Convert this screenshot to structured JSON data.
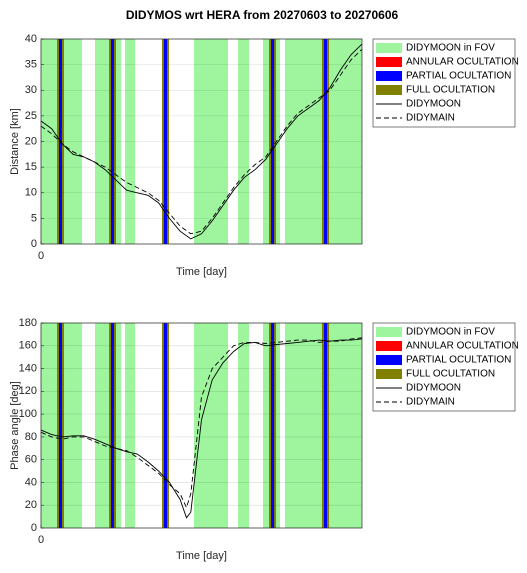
{
  "chart_data": [
    {
      "type": "line",
      "title": "DIDYMOS wrt HERA from 20270603 to 20270606",
      "xlabel": "Time [day]",
      "ylabel": "Distance [km]",
      "xlim": [
        0,
        3
      ],
      "xticks": [
        0
      ],
      "ylim": [
        0,
        40
      ],
      "yticks": [
        0,
        5,
        10,
        15,
        20,
        25,
        30,
        35,
        40
      ],
      "grid": true,
      "legend": "outside-right",
      "x": [
        0,
        0.1,
        0.2,
        0.3,
        0.4,
        0.5,
        0.6,
        0.7,
        0.8,
        0.9,
        1.0,
        1.1,
        1.2,
        1.3,
        1.4,
        1.5,
        1.6,
        1.7,
        1.8,
        1.9,
        2.0,
        2.1,
        2.2,
        2.3,
        2.4,
        2.5,
        2.6,
        2.7,
        2.8,
        2.9,
        3.0
      ],
      "bands": [
        {
          "name": "DIDYMOON in FOV",
          "color": "#9ef59e",
          "intervals": [
            [
              0,
              0.383
            ],
            [
              0.505,
              0.748
            ],
            [
              0.785,
              0.879
            ],
            [
              1.43,
              1.748
            ],
            [
              1.841,
              1.944
            ],
            [
              2.075,
              2.234
            ],
            [
              2.28,
              3
            ]
          ]
        },
        {
          "name": "ANNULAR OCULTATION",
          "color": "#ff0000",
          "intervals": []
        },
        {
          "name": "FULL OCULTATION",
          "color": "#808000",
          "intervals": [
            [
              0.15,
              0.215
            ],
            [
              0.636,
              0.701
            ],
            [
              1.131,
              1.196
            ],
            [
              2.131,
              2.196
            ],
            [
              2.626,
              2.692
            ]
          ]
        },
        {
          "name": "PARTIAL OCULTATION",
          "color": "#0000ff",
          "intervals": [
            [
              0.168,
              0.196
            ],
            [
              0.654,
              0.682
            ],
            [
              1.149,
              1.178
            ],
            [
              2.15,
              2.178
            ],
            [
              2.645,
              2.673
            ]
          ]
        }
      ],
      "series": [
        {
          "name": "DIDYMOON",
          "color": "#000000",
          "line_style": "solid",
          "values": [
            24,
            22.5,
            19.5,
            17.5,
            17,
            16,
            14.5,
            12.5,
            10.5,
            10,
            9.5,
            8,
            5,
            2.5,
            1,
            2,
            4.5,
            7.5,
            10.5,
            13,
            14.5,
            16.5,
            19.5,
            22.5,
            25,
            26.5,
            28,
            30.5,
            34,
            37,
            39
          ]
        },
        {
          "name": "DIDYMAIN",
          "color": "#000000",
          "line_style": "dashed",
          "values": [
            23,
            21.5,
            19.5,
            18,
            17,
            16,
            15,
            13.5,
            12,
            11,
            10,
            8.5,
            6,
            3.5,
            2,
            2.5,
            5,
            8,
            11,
            13.5,
            15.5,
            17,
            20,
            23,
            25.5,
            27,
            28.5,
            30,
            33,
            36,
            38
          ]
        }
      ]
    },
    {
      "type": "line",
      "xlabel": "Time [day]",
      "ylabel": "Phase angle [deg]",
      "xlim": [
        0,
        3
      ],
      "xticks": [
        0
      ],
      "ylim": [
        0,
        180
      ],
      "yticks": [
        0,
        20,
        40,
        60,
        80,
        100,
        120,
        140,
        160,
        180
      ],
      "grid": true,
      "legend": "outside-right",
      "x": [
        0,
        0.1,
        0.2,
        0.3,
        0.4,
        0.5,
        0.6,
        0.7,
        0.8,
        0.9,
        1.0,
        1.1,
        1.2,
        1.3,
        1.36,
        1.4,
        1.5,
        1.6,
        1.7,
        1.8,
        1.9,
        2.0,
        2.1,
        2.2,
        2.3,
        2.4,
        2.5,
        2.6,
        2.7,
        2.8,
        2.9,
        3.0
      ],
      "bands": [
        {
          "name": "DIDYMOON in FOV",
          "color": "#9ef59e",
          "intervals": [
            [
              0,
              0.383
            ],
            [
              0.505,
              0.748
            ],
            [
              0.785,
              0.879
            ],
            [
              1.43,
              1.748
            ],
            [
              1.841,
              1.944
            ],
            [
              2.075,
              2.234
            ],
            [
              2.28,
              3
            ]
          ]
        },
        {
          "name": "ANNULAR OCULTATION",
          "color": "#ff0000",
          "intervals": []
        },
        {
          "name": "FULL OCULTATION",
          "color": "#808000",
          "intervals": [
            [
              0.15,
              0.215
            ],
            [
              0.636,
              0.701
            ],
            [
              1.131,
              1.196
            ],
            [
              2.131,
              2.196
            ],
            [
              2.626,
              2.692
            ]
          ]
        },
        {
          "name": "PARTIAL OCULTATION",
          "color": "#0000ff",
          "intervals": [
            [
              0.168,
              0.196
            ],
            [
              0.654,
              0.682
            ],
            [
              1.149,
              1.178
            ],
            [
              2.15,
              2.178
            ],
            [
              2.645,
              2.673
            ]
          ]
        }
      ],
      "series": [
        {
          "name": "DIDYMOON",
          "color": "#000000",
          "line_style": "solid",
          "values": [
            86,
            82,
            80,
            81,
            81,
            78,
            74,
            70,
            67,
            65,
            58,
            50,
            40,
            25,
            9,
            14,
            95,
            130,
            145,
            155,
            162,
            163,
            160,
            161,
            162,
            163,
            164,
            165,
            164,
            165,
            165,
            166
          ]
        },
        {
          "name": "DIDYMAIN",
          "color": "#000000",
          "line_style": "dashed",
          "values": [
            84,
            80,
            78,
            80,
            80,
            76,
            72,
            70,
            68,
            62,
            55,
            48,
            38,
            30,
            18,
            30,
            115,
            140,
            150,
            160,
            163,
            163,
            162,
            163,
            164,
            165,
            165,
            163,
            164,
            164,
            166,
            167
          ]
        }
      ]
    }
  ]
}
